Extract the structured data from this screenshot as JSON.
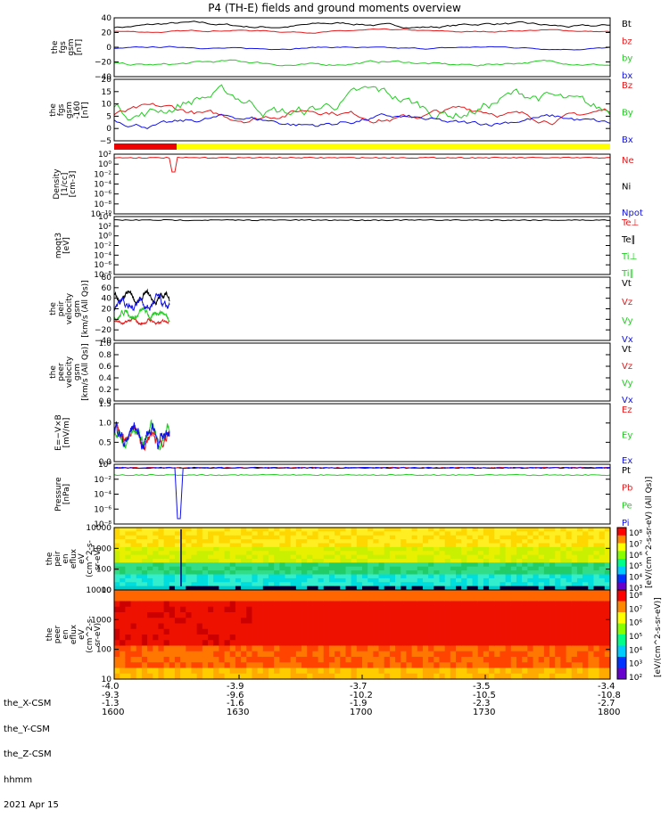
{
  "title": "P4 (TH-E) fields and ground moments overview",
  "colors": {
    "black": "#000000",
    "red": "#e41a1c",
    "green": "#22cc22",
    "blue": "#1010ee",
    "yellow": "#ffff00",
    "bar_red": "#ee0000"
  },
  "chart_data": [
    {
      "id": "p1",
      "type": "line",
      "ylabel": [
        "the",
        "fgs",
        "gsm",
        "[nT]"
      ],
      "ylim": [
        -40,
        40
      ],
      "yticks": [
        "40",
        "20",
        "0",
        "−20",
        "−40"
      ],
      "legend": [
        "Bt",
        "bz",
        "by",
        "bx"
      ],
      "series": [
        {
          "name": "Bt",
          "color": "black",
          "base": 30,
          "amp": 4
        },
        {
          "name": "bz",
          "color": "red",
          "base": 22,
          "amp": 2
        },
        {
          "name": "by",
          "color": "blue",
          "base": -1,
          "amp": 2
        },
        {
          "name": "bx",
          "color": "green",
          "base": -22,
          "amp": 4
        }
      ]
    },
    {
      "id": "p2",
      "type": "line",
      "ylabel": [
        "the",
        "fgs",
        "gsm",
        "-160",
        "[nT]"
      ],
      "ylim": [
        -5,
        20
      ],
      "yticks": [
        "20",
        "15",
        "10",
        "5",
        "0",
        "−5"
      ],
      "legend": [
        "Bz",
        "By",
        "Bx"
      ],
      "series": [
        {
          "name": "Bz",
          "color": "red",
          "base": 6,
          "amp": 3
        },
        {
          "name": "By",
          "color": "green",
          "base": 10,
          "amp": 6
        },
        {
          "name": "Bx",
          "color": "blue",
          "base": 3,
          "amp": 2.5
        }
      ]
    },
    {
      "id": "p3",
      "type": "line",
      "log": true,
      "ylabel": [
        "Density",
        "[1/cc]",
        "[cm-3]"
      ],
      "yticks": [
        "10²",
        "10⁰",
        "10⁻²",
        "10⁻⁴",
        "10⁻⁶",
        "10⁻⁸",
        "10⁻¹⁰"
      ],
      "legend": [
        "Ne",
        "Ni",
        "Npot"
      ],
      "series": [
        {
          "name": "Ne",
          "color": "red",
          "base": 1
        }
      ]
    },
    {
      "id": "p4",
      "type": "line",
      "log": true,
      "ylabel": [
        "moqt3",
        "[eV]"
      ],
      "yticks": [
        "10⁴",
        "10²",
        "10⁰",
        "10⁻²",
        "10⁻⁴",
        "10⁻⁶",
        "10⁻⁸"
      ],
      "legend": [
        "Te⊥",
        "Te∥",
        "Ti⊥",
        "Ti∥"
      ],
      "series": [
        {
          "name": "Te",
          "color": "black",
          "base": 3
        }
      ]
    },
    {
      "id": "p5",
      "type": "line",
      "ylabel": [
        "the",
        "peir",
        "velocity",
        "gsm",
        "[km/s (All Qs)]"
      ],
      "ylim": [
        -40,
        80
      ],
      "yticks": [
        "80",
        "60",
        "40",
        "20",
        "0",
        "−20",
        "−40"
      ],
      "legend": [
        "Vt",
        "Vz",
        "Vy",
        "Vx"
      ],
      "series": [
        {
          "name": "Vt",
          "color": "black",
          "base": 40,
          "amp": 12
        },
        {
          "name": "Vz",
          "color": "red",
          "base": -5,
          "amp": 6
        },
        {
          "name": "Vy",
          "color": "green",
          "base": 10,
          "amp": 10
        },
        {
          "name": "Vx",
          "color": "blue",
          "base": 30,
          "amp": 15
        }
      ]
    },
    {
      "id": "p6",
      "type": "line",
      "ylabel": [
        "the",
        "peer",
        "velocity",
        "gsm",
        "[km/s (All Qs)]"
      ],
      "ylim": [
        0,
        1
      ],
      "yticks": [
        "1.0",
        "0.8",
        "0.6",
        "0.4",
        "0.2",
        "0.0"
      ],
      "legend": [
        "Vt",
        "Vz",
        "Vy",
        "Vx"
      ],
      "series": []
    },
    {
      "id": "p7",
      "type": "line",
      "ylabel": [
        "E=−V×B",
        "[mV/m]"
      ],
      "ylim": [
        -0.2,
        1.5
      ],
      "yticks": [
        "1.5",
        "1.0",
        "0.5",
        "0.0"
      ],
      "legend": [
        "Ez",
        "Ey",
        "Ex"
      ],
      "series": [
        {
          "name": "Ez",
          "color": "red",
          "base": 0.5,
          "amp": 0.3
        },
        {
          "name": "Ey",
          "color": "green",
          "base": 0.55,
          "amp": 0.3
        },
        {
          "name": "Ex",
          "color": "blue",
          "base": 0.6,
          "amp": 0.4
        }
      ]
    },
    {
      "id": "p8",
      "type": "line",
      "log": true,
      "ylabel": [
        "Pressure",
        "[nPa]"
      ],
      "yticks": [
        "10⁰",
        "10⁻²",
        "10⁻⁴",
        "10⁻⁶",
        "10⁻⁸"
      ],
      "legend": [
        "Pt",
        "Pb",
        "Pe",
        "Pi"
      ],
      "series": [
        {
          "name": "Pt",
          "color": "black",
          "base": 0.3
        },
        {
          "name": "Pb",
          "color": "red",
          "base": 0.2
        },
        {
          "name": "Pe",
          "color": "green",
          "base": 0.02
        },
        {
          "name": "Pi",
          "color": "blue",
          "base": 0.25
        }
      ]
    },
    {
      "id": "p9",
      "type": "heatmap",
      "ylabel": [
        "the",
        "peir",
        "en",
        "eflux",
        "eV",
        "(cm^2-s-",
        "sr-eV)"
      ],
      "yticks": [
        "10000",
        "1000",
        "100",
        "10"
      ]
    },
    {
      "id": "p10",
      "type": "heatmap",
      "ylabel": [
        "the",
        "peer",
        "en",
        "eflux",
        "eV",
        "(cm^2-s-",
        "sr-eV)"
      ],
      "yticks": [
        "10000",
        "1000",
        "100",
        "10"
      ]
    }
  ],
  "colorbar": {
    "label": "[eV/(cm^2-s-sr-eV)]",
    "label2": "[eV/(cm^2-s-sr-eV) (All Qs)]",
    "ticks_top": [
      "10⁸",
      "10⁷",
      "10⁶",
      "10⁵",
      "10⁴",
      "10³"
    ],
    "ticks_bottom": [
      "10⁸",
      "10⁷",
      "10⁶",
      "10⁵",
      "10⁴",
      "10³",
      "10²"
    ]
  },
  "xaxis": {
    "rows": [
      {
        "label": "the_X-CSM",
        "values": [
          "-4.0",
          "-3.9",
          "-3.7",
          "-3.5",
          "-3.4"
        ]
      },
      {
        "label": "the_Y-CSM",
        "values": [
          "-9.3",
          "-9.6",
          "-10.2",
          "-10.5",
          "-10.8"
        ]
      },
      {
        "label": "the_Z-CSM",
        "values": [
          "-1.3",
          "-1.6",
          "-1.9",
          "-2.3",
          "-2.7"
        ]
      },
      {
        "label": "hhmm",
        "values": [
          "1600",
          "1630",
          "1700",
          "1730",
          "1800"
        ]
      }
    ],
    "date": "2021 Apr 15"
  }
}
